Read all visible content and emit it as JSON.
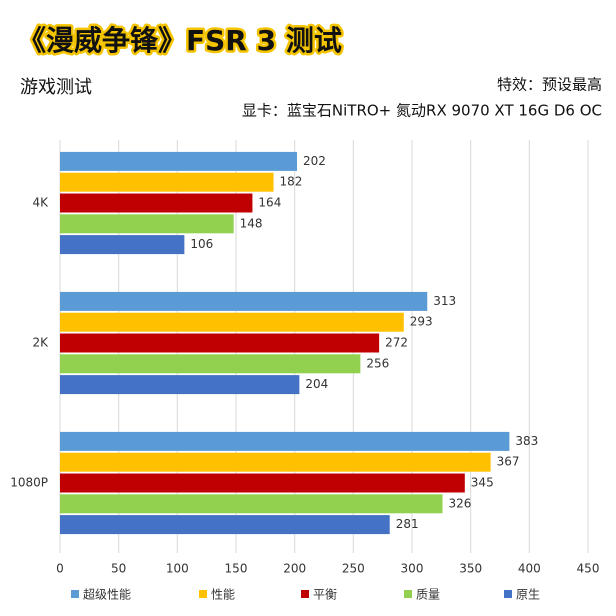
{
  "chart_data": {
    "type": "bar",
    "orientation": "horizontal",
    "title": "《漫威争锋》FSR 3 测试",
    "subtitle": "游戏测试",
    "notes": [
      "特效：预设最高",
      "显卡：蓝宝石NiTRO+ 氮动RX 9070 XT 16G D6 OC"
    ],
    "categories": [
      "4K",
      "2K",
      "1080P"
    ],
    "series": [
      {
        "name": "超级性能",
        "color": "#5b9bd5",
        "values": [
          202,
          313,
          383
        ]
      },
      {
        "name": "性能",
        "color": "#ffc000",
        "values": [
          182,
          293,
          367
        ]
      },
      {
        "name": "平衡",
        "color": "#c00000",
        "values": [
          164,
          272,
          345
        ]
      },
      {
        "name": "质量",
        "color": "#92d050",
        "values": [
          148,
          256,
          326
        ]
      },
      {
        "name": "原生",
        "color": "#4472c4",
        "values": [
          106,
          204,
          281
        ]
      }
    ],
    "xlim": [
      0,
      450
    ],
    "xticks": [
      0,
      50,
      100,
      150,
      200,
      250,
      300,
      350,
      400,
      450
    ],
    "grid": true,
    "legend": "bottom"
  }
}
